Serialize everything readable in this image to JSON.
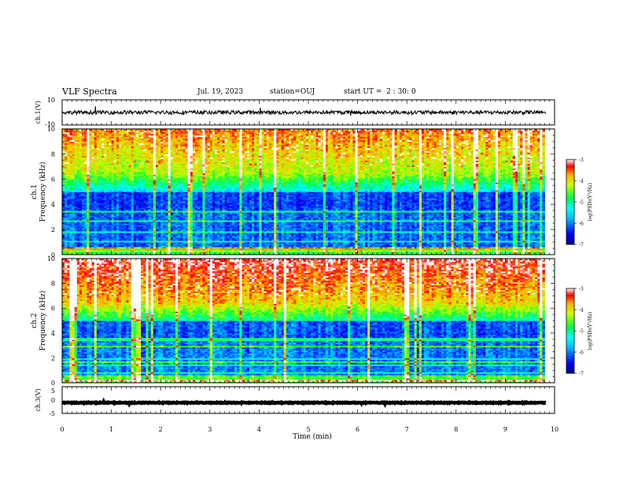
{
  "header": {
    "title": "VLF Spectra",
    "date": "Jul. 19, 2023",
    "station": "station=OUJ",
    "start": "start UT =  2 : 30: 0"
  },
  "chart_data": [
    {
      "type": "line",
      "panel": "ch1-waveform",
      "ylabel": "ch.1(V)",
      "ylim": [
        -10,
        10
      ],
      "yticks": [
        "10",
        "-10"
      ],
      "xlim": [
        0,
        10
      ],
      "baseline": 0,
      "amplitude": 1.5
    },
    {
      "type": "heatmap",
      "panel": "ch1-spectrogram",
      "ylabel_top": "ch.1",
      "ylabel": "Frequency (kHz)",
      "ylim": [
        0,
        10
      ],
      "yticks": [
        "0",
        "2",
        "4",
        "6",
        "8",
        "10"
      ],
      "xlim": [
        0,
        10
      ],
      "data_end_min": 9.8,
      "colorbar": {
        "label": "log(PSD)(V²/Hz)",
        "ticks": [
          "-3",
          "-4",
          "-5",
          "-6",
          "-7"
        ],
        "range": [
          -7,
          -3
        ]
      }
    },
    {
      "type": "heatmap",
      "panel": "ch2-spectrogram",
      "ylabel_top": "ch.2",
      "ylabel": "Frequency (kHz)",
      "ylim": [
        0,
        10
      ],
      "yticks": [
        "0",
        "2",
        "4",
        "6",
        "8",
        "10"
      ],
      "xlim": [
        0,
        10
      ],
      "data_end_min": 9.8,
      "colorbar": {
        "label": "log(PSD)(V²/Hz)",
        "ticks": [
          "-3",
          "-4",
          "-5",
          "-6",
          "-7"
        ],
        "range": [
          -7,
          -3
        ]
      }
    },
    {
      "type": "line",
      "panel": "ch3-waveform",
      "ylabel": "ch.3(V)",
      "ylim": [
        -5,
        5
      ],
      "yticks": [
        "5",
        "0",
        "-5"
      ],
      "xlim": [
        0,
        10
      ],
      "baseline": -1,
      "amplitude": 0.15
    }
  ],
  "xaxis": {
    "label": "Time (min)",
    "ticks": [
      "0",
      "1",
      "2",
      "3",
      "4",
      "5",
      "6",
      "7",
      "8",
      "9",
      "10"
    ]
  },
  "colors": {
    "noise_floor": "#00008f",
    "mid": "#00ff80",
    "high": "#ff0000",
    "trace": "#000000"
  }
}
